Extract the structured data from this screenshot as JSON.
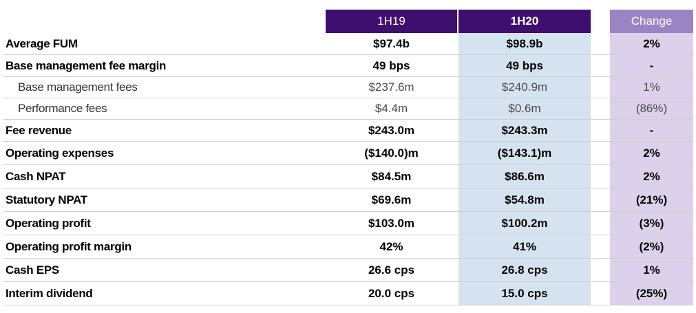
{
  "header": {
    "col1": "1H19",
    "col2": "1H20",
    "col3": "Change"
  },
  "rows": [
    {
      "label": "Average FUM",
      "v1": "$97.4b",
      "v2": "$98.9b",
      "v3": "2%"
    },
    {
      "label": "Base management fee margin",
      "v1": "49 bps",
      "v2": "49 bps",
      "v3": "-"
    },
    {
      "label": "Base management fees",
      "v1": "$237.6m",
      "v2": "$240.9m",
      "v3": "1%"
    },
    {
      "label": "Performance fees",
      "v1": "$4.4m",
      "v2": "$0.6m",
      "v3": "(86%)"
    },
    {
      "label": "Fee revenue",
      "v1": "$243.0m",
      "v2": "$243.3m",
      "v3": "-"
    },
    {
      "label": "Operating expenses",
      "v1": "($140.0)m",
      "v2": "($143.1)m",
      "v3": "2%"
    },
    {
      "label": "Cash NPAT",
      "v1": "$84.5m",
      "v2": "$86.6m",
      "v3": "2%"
    },
    {
      "label": "Statutory NPAT",
      "v1": "$69.6m",
      "v2": "$54.8m",
      "v3": "(21%)"
    },
    {
      "label": "Operating profit",
      "v1": "$103.0m",
      "v2": "$100.2m",
      "v3": "(3%)"
    },
    {
      "label": "Operating profit margin",
      "v1": "42%",
      "v2": "41%",
      "v3": "(2%)"
    },
    {
      "label": "Cash EPS",
      "v1": "26.6 cps",
      "v2": "26.8 cps",
      "v3": "1%"
    },
    {
      "label": "Interim dividend",
      "v1": "20.0 cps",
      "v2": "15.0 cps",
      "v3": "(25%)"
    }
  ],
  "colors": {
    "header_dark": "#3f0f70",
    "header_light": "#9b84c4",
    "col_1h20_fill": "#d5e3f1",
    "col_change_fill": "#dcd0ea"
  }
}
